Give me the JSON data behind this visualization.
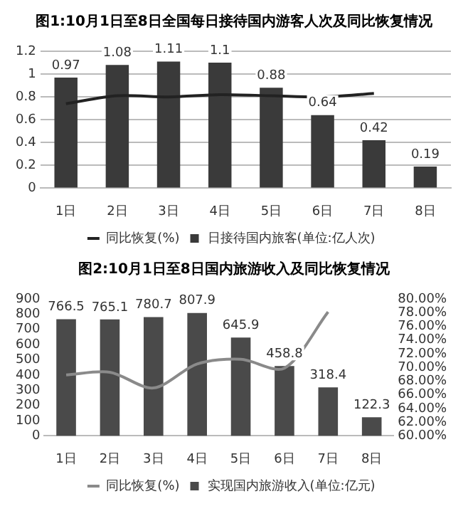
{
  "chart_data": [
    {
      "type": "bar",
      "title": "图1:10月1日至8日全国每日接待国内游客人次及同比恢复情况",
      "categories": [
        "1日",
        "2日",
        "3日",
        "4日",
        "5日",
        "6日",
        "7日",
        "8日"
      ],
      "series": [
        {
          "name": "日接待国内旅客(单位:亿人次)",
          "color": "#3a3a3a",
          "values": [
            0.97,
            1.08,
            1.11,
            1.1,
            0.88,
            0.64,
            0.42,
            0.19
          ],
          "value_labels": [
            "0.97",
            "1.08",
            "1.11",
            "1.1",
            "0.88",
            "0.64",
            "0.42",
            "0.19"
          ]
        },
        {
          "name": "同比恢复(%)",
          "type": "line",
          "color": "#222222",
          "values": [
            0.74,
            0.81,
            0.8,
            0.82,
            0.81,
            0.8,
            0.83,
            null
          ]
        }
      ],
      "ylim": [
        0,
        1.2
      ],
      "yticks": [
        0,
        0.2,
        0.4,
        0.6,
        0.8,
        1,
        1.2
      ],
      "grid": "y",
      "legend": "bottom",
      "marker": "none"
    },
    {
      "type": "bar",
      "title": "图2:10月1日至8日国内旅游收入及同比恢复情况",
      "categories": [
        "1日",
        "2日",
        "3日",
        "4日",
        "5日",
        "6日",
        "7日",
        "8日"
      ],
      "series": [
        {
          "name": "实现国内旅游收入(单位:亿元)",
          "color": "#4a4a4a",
          "values": [
            766.5,
            765.1,
            780.7,
            807.9,
            645.9,
            458.8,
            318.4,
            122.3
          ],
          "value_labels": [
            "766.5",
            "765.1",
            "780.7",
            "807.9",
            "645.9",
            "458.8",
            "318.4",
            "122.3"
          ]
        },
        {
          "name": "同比恢复(%)",
          "type": "line",
          "axis": "y2",
          "color": "#8a8a8a",
          "values": [
            68.9,
            69.3,
            67,
            70.5,
            71.2,
            69.9,
            78.1,
            null
          ]
        }
      ],
      "ylim": [
        0,
        900
      ],
      "yticks": [
        0,
        100,
        200,
        300,
        400,
        500,
        600,
        700,
        800,
        900
      ],
      "y2lim": [
        60,
        80
      ],
      "y2ticks": [
        {
          "value": 60,
          "label": "60.00%"
        },
        {
          "value": 62,
          "label": "62.00%"
        },
        {
          "value": 64,
          "label": "64.00%"
        },
        {
          "value": 66,
          "label": "66.00%"
        },
        {
          "value": 68,
          "label": "68.00%"
        },
        {
          "value": 70,
          "label": "70.00%"
        },
        {
          "value": 72,
          "label": "72.00%"
        },
        {
          "value": 74,
          "label": "74.00%"
        },
        {
          "value": 76,
          "label": "76.00%"
        },
        {
          "value": 78,
          "label": "78.00%"
        },
        {
          "value": 80,
          "label": "80.00%"
        }
      ],
      "legend": "bottom",
      "marker": "none"
    }
  ]
}
